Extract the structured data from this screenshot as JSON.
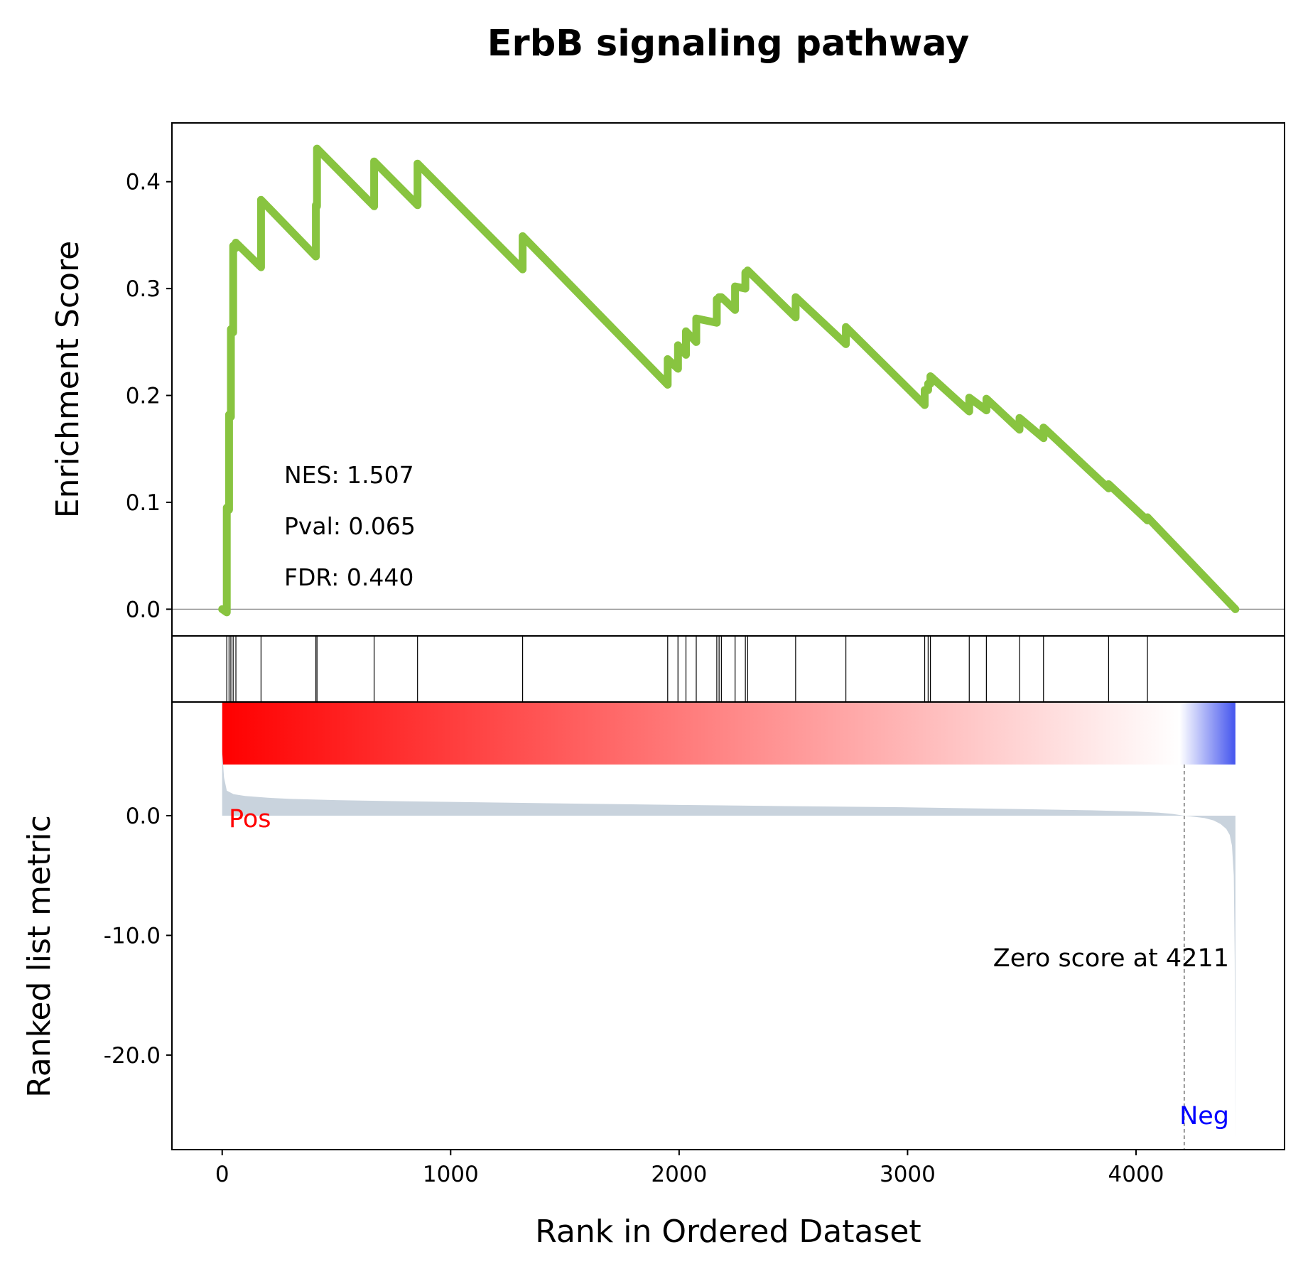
{
  "chart_data": {
    "type": "line",
    "title": "ErbB signaling pathway",
    "xlabel": "Rank in Ordered Dataset",
    "colors": {
      "es_line": "#88c440",
      "pos_label": "#ff0000",
      "neg_label": "#0000ff",
      "metric_fill": "#c9d3dd",
      "heat_pos": "#ff0000",
      "heat_mid": "#ffffff",
      "heat_neg": "#4455ee"
    },
    "xlim": [
      -220,
      4650
    ],
    "xticks": [
      0,
      1000,
      2000,
      3000,
      4000
    ],
    "xtick_labels": [
      "0",
      "1000",
      "2000",
      "3000",
      "4000"
    ],
    "es_panel": {
      "ylabel": "Enrichment Score",
      "ylim": [
        -0.025,
        0.455
      ],
      "yticks": [
        0.0,
        0.1,
        0.2,
        0.3,
        0.4
      ],
      "ytick_labels": [
        "0.0",
        "0.1",
        "0.2",
        "0.3",
        "0.4"
      ],
      "zero_line": true,
      "stats": [
        "NES: 1.507",
        "Pval: 0.065",
        "FDR: 0.440"
      ],
      "series": [
        {
          "x": [
            0,
            20,
            20,
            30,
            30,
            38,
            38,
            48,
            48,
            60,
            60,
            170,
            170,
            410,
            410,
            415,
            415,
            665,
            665,
            855,
            855,
            1315,
            1315,
            1950,
            1950,
            1995,
            1995,
            2030,
            2030,
            2075,
            2075,
            2165,
            2165,
            2175,
            2175,
            2185,
            2185,
            2245,
            2245,
            2290,
            2290,
            2300,
            2300,
            2510,
            2510,
            2730,
            2730,
            3075,
            3075,
            3090,
            3090,
            3100,
            3100,
            3270,
            3270,
            3345,
            3345,
            3490,
            3490,
            3595,
            3595,
            3880,
            3880,
            4050,
            4050,
            4435
          ],
          "y": [
            0.0,
            -0.003,
            0.095,
            0.093,
            0.182,
            0.18,
            0.262,
            0.259,
            0.34,
            0.338,
            0.343,
            0.32,
            0.383,
            0.33,
            0.378,
            0.377,
            0.431,
            0.377,
            0.419,
            0.378,
            0.417,
            0.318,
            0.349,
            0.21,
            0.234,
            0.225,
            0.247,
            0.238,
            0.26,
            0.25,
            0.272,
            0.268,
            0.29,
            0.29,
            0.292,
            0.292,
            0.292,
            0.28,
            0.302,
            0.3,
            0.315,
            0.315,
            0.317,
            0.273,
            0.292,
            0.248,
            0.264,
            0.191,
            0.205,
            0.205,
            0.211,
            0.211,
            0.218,
            0.185,
            0.198,
            0.186,
            0.197,
            0.168,
            0.179,
            0.16,
            0.17,
            0.113,
            0.117,
            0.083,
            0.086,
            0.0
          ]
        }
      ]
    },
    "hits_panel": {
      "positions": [
        20,
        30,
        38,
        48,
        60,
        170,
        410,
        415,
        665,
        855,
        1315,
        1950,
        1995,
        2030,
        2075,
        2165,
        2175,
        2185,
        2245,
        2290,
        2300,
        2510,
        2730,
        3075,
        3090,
        3100,
        3270,
        3345,
        3490,
        3595,
        3880,
        4050
      ]
    },
    "metric_panel": {
      "ylabel": "Ranked list metric",
      "ylim": [
        -27.9,
        9.5
      ],
      "yticks": [
        0.0,
        -10.0,
        -20.0
      ],
      "ytick_labels": [
        "0.0",
        "-10.0",
        "-20.0"
      ],
      "pos_label": "Pos",
      "neg_label": "Neg",
      "zero_cross": 4211,
      "zero_cross_label": "Zero score at 4211",
      "series": [
        {
          "x": [
            0,
            8,
            20,
            50,
            100,
            200,
            300,
            500,
            800,
            1200,
            1600,
            2000,
            2500,
            3000,
            3500,
            3800,
            4000,
            4100,
            4160,
            4211,
            4260,
            4300,
            4340,
            4370,
            4395,
            4410,
            4420,
            4428,
            4432,
            4435
          ],
          "y": [
            5.4,
            3.2,
            2.1,
            1.8,
            1.65,
            1.5,
            1.4,
            1.3,
            1.2,
            1.1,
            1.0,
            0.9,
            0.8,
            0.7,
            0.55,
            0.45,
            0.35,
            0.25,
            0.15,
            0.0,
            -0.1,
            -0.2,
            -0.4,
            -0.7,
            -1.1,
            -1.6,
            -2.5,
            -5.0,
            -12.0,
            -26.9
          ]
        }
      ]
    }
  }
}
